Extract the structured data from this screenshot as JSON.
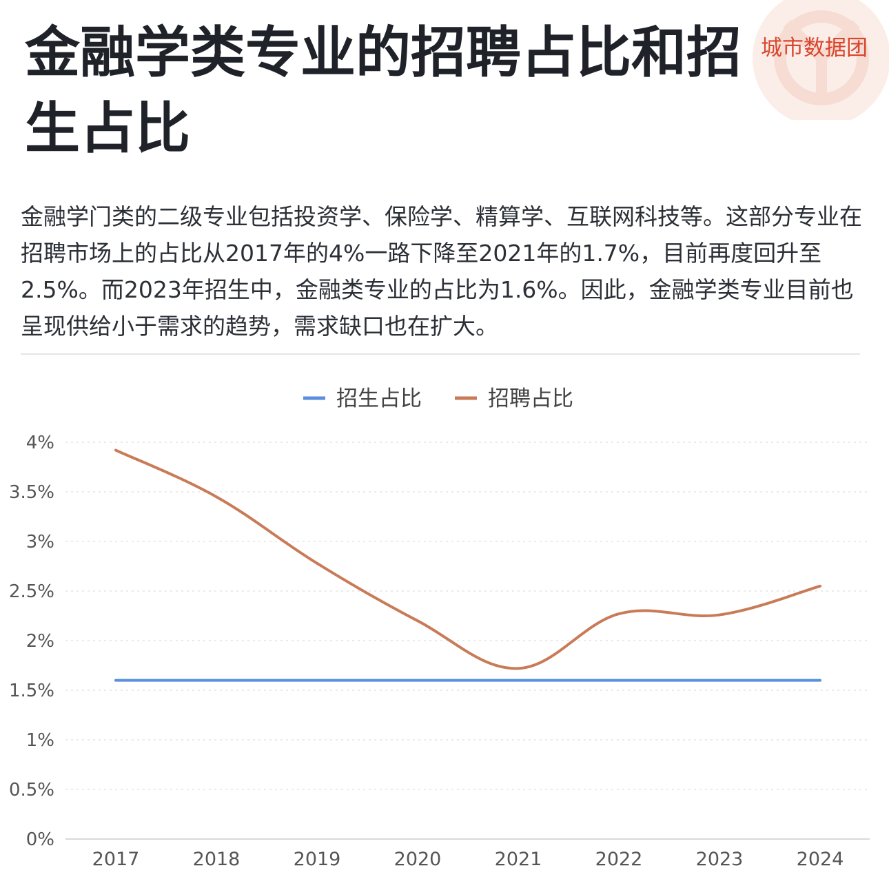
{
  "brand": "城市数据团",
  "title": "金融学类专业的招聘占比和招生占比",
  "intro": "金融学门类的二级专业包括投资学、保险学、精算学、互联网科技等。这部分专业在招聘市场上的占比从2017年的4%一路下降至2021年的1.7%，目前再度回升至2.5%。而2023年招生中，金融类专业的占比为1.6%。因此，金融学类专业目前也呈现供给小于需求的趋势，需求缺口也在扩大。",
  "colors": {
    "enroll": "#5b8fde",
    "recruit": "#c97b57",
    "brand": "#d9452c"
  },
  "chart_data": {
    "type": "line",
    "x": [
      "2017",
      "2018",
      "2019",
      "2020",
      "2021",
      "2022",
      "2023",
      "2024"
    ],
    "y_ticks": [
      "0%",
      "0.5%",
      "1%",
      "1.5%",
      "2%",
      "2.5%",
      "3%",
      "3.5%",
      "4%"
    ],
    "ylim": [
      0,
      4
    ],
    "grid": true,
    "legend_position": "top-center",
    "series": [
      {
        "name": "招生占比",
        "values": [
          1.6,
          1.6,
          1.6,
          1.6,
          1.6,
          1.6,
          1.6,
          1.6
        ]
      },
      {
        "name": "招聘占比",
        "values": [
          3.92,
          3.45,
          2.78,
          2.2,
          1.72,
          2.27,
          2.26,
          2.55
        ]
      }
    ]
  }
}
